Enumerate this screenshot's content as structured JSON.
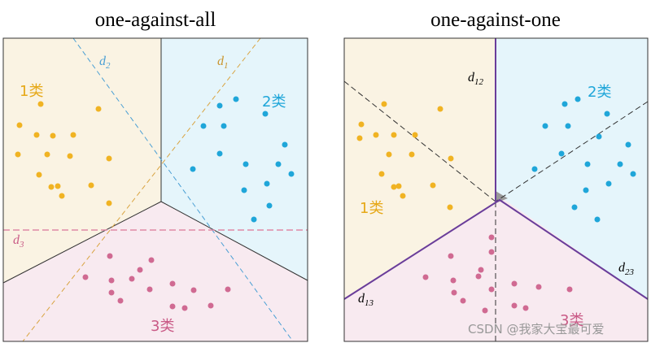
{
  "left": {
    "title": "one-against-all",
    "classes": [
      "1类",
      "2类",
      "3类"
    ],
    "lines": [
      {
        "base": "d",
        "sub": "2"
      },
      {
        "base": "d",
        "sub": "1"
      },
      {
        "base": "d",
        "sub": "3"
      }
    ]
  },
  "right": {
    "title": "one-against-one",
    "classes": [
      "1类",
      "2类",
      "3类"
    ],
    "lines": [
      {
        "base": "d",
        "sub": "12"
      },
      {
        "base": "d",
        "sub": "23"
      },
      {
        "base": "d",
        "sub": "13"
      }
    ]
  },
  "watermark": "CSDN @我家大宝最可爱"
}
